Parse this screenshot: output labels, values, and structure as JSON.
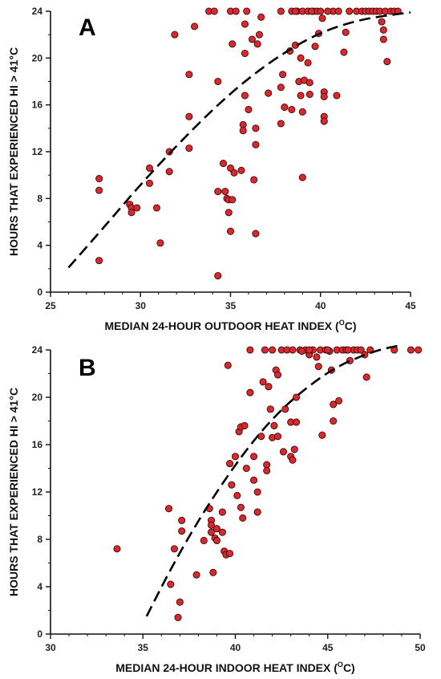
{
  "chart_data": [
    {
      "type": "scatter",
      "panel_label": "A",
      "xlabel": "MEDIAN 24-HOUR OUTDOOR HEAT INDEX (",
      "xlabel_unit_sup": "O",
      "xlabel_unit": "C)",
      "ylabel": "HOURS THAT EXPERIENCED HI > 41°C",
      "xlim": [
        25,
        45
      ],
      "ylim": [
        0,
        24
      ],
      "xticks": [
        25,
        30,
        35,
        40,
        45
      ],
      "yticks": [
        0,
        4,
        8,
        12,
        16,
        20,
        24
      ],
      "grid": false,
      "point_color": "#d9282e",
      "fit_curve": {
        "style": "dashed",
        "color": "#000000",
        "points": [
          [
            26,
            2.1
          ],
          [
            28,
            5.6
          ],
          [
            30,
            9.2
          ],
          [
            32,
            12.5
          ],
          [
            34,
            15.6
          ],
          [
            36,
            18.3
          ],
          [
            38,
            20.5
          ],
          [
            40,
            22.2
          ],
          [
            42,
            23.2
          ],
          [
            43.5,
            23.6
          ],
          [
            45,
            23.9
          ]
        ]
      },
      "points": [
        [
          27.7,
          9.7
        ],
        [
          27.7,
          8.7
        ],
        [
          27.7,
          2.7
        ],
        [
          29.4,
          7.5
        ],
        [
          29.5,
          7.2
        ],
        [
          29.5,
          6.8
        ],
        [
          29.8,
          7.2
        ],
        [
          30.5,
          10.6
        ],
        [
          30.5,
          9.3
        ],
        [
          30.9,
          7.2
        ],
        [
          31.1,
          4.2
        ],
        [
          31.6,
          12.0
        ],
        [
          31.6,
          10.3
        ],
        [
          31.9,
          22.0
        ],
        [
          32.7,
          18.6
        ],
        [
          32.7,
          15.0
        ],
        [
          32.7,
          12.3
        ],
        [
          33.0,
          22.7
        ],
        [
          33.8,
          24.0
        ],
        [
          34.1,
          24.0
        ],
        [
          34.3,
          18.0
        ],
        [
          34.3,
          8.6
        ],
        [
          34.3,
          1.4
        ],
        [
          34.6,
          11.0
        ],
        [
          34.7,
          8.6
        ],
        [
          34.8,
          8.0
        ],
        [
          34.9,
          7.9
        ],
        [
          34.9,
          6.8
        ],
        [
          35.0,
          5.2
        ],
        [
          35.0,
          10.6
        ],
        [
          35.1,
          7.9
        ],
        [
          35.2,
          10.2
        ],
        [
          35.0,
          24.0
        ],
        [
          35.1,
          21.2
        ],
        [
          35.3,
          24.0
        ],
        [
          35.6,
          10.4
        ],
        [
          35.7,
          14.3
        ],
        [
          35.7,
          13.8
        ],
        [
          35.8,
          16.8
        ],
        [
          35.8,
          20.4
        ],
        [
          35.8,
          22.9
        ],
        [
          35.9,
          24.0
        ],
        [
          36.0,
          15.6
        ],
        [
          36.2,
          21.6
        ],
        [
          36.3,
          9.6
        ],
        [
          36.4,
          5.0
        ],
        [
          36.4,
          14.0
        ],
        [
          36.4,
          12.6
        ],
        [
          36.5,
          21.2
        ],
        [
          36.6,
          22.0
        ],
        [
          36.7,
          23.5
        ],
        [
          37.1,
          17.0
        ],
        [
          37.8,
          24.0
        ],
        [
          37.8,
          17.5
        ],
        [
          37.8,
          14.4
        ],
        [
          37.9,
          18.6
        ],
        [
          38.0,
          15.8
        ],
        [
          38.3,
          20.6
        ],
        [
          38.4,
          24.0
        ],
        [
          38.4,
          15.6
        ],
        [
          38.6,
          21.1
        ],
        [
          38.7,
          24.0
        ],
        [
          38.8,
          18.0
        ],
        [
          38.9,
          20.0
        ],
        [
          38.9,
          16.8
        ],
        [
          39.0,
          24.0
        ],
        [
          39.0,
          15.4
        ],
        [
          39.0,
          9.8
        ],
        [
          39.1,
          18.1
        ],
        [
          39.3,
          19.6
        ],
        [
          39.3,
          24.0
        ],
        [
          39.4,
          17.9
        ],
        [
          39.4,
          16.9
        ],
        [
          39.6,
          24.0
        ],
        [
          39.7,
          21.0
        ],
        [
          39.8,
          24.0
        ],
        [
          39.9,
          22.1
        ],
        [
          40.0,
          24.0
        ],
        [
          40.1,
          23.4
        ],
        [
          40.2,
          17.1
        ],
        [
          40.2,
          16.7
        ],
        [
          40.2,
          15.0
        ],
        [
          40.2,
          14.6
        ],
        [
          40.7,
          24.0
        ],
        [
          40.9,
          16.8
        ],
        [
          41.0,
          24.0
        ],
        [
          41.3,
          20.5
        ],
        [
          41.4,
          22.2
        ],
        [
          41.6,
          24.0
        ],
        [
          42.0,
          24.0
        ],
        [
          42.3,
          24.0
        ],
        [
          42.5,
          24.0
        ],
        [
          42.7,
          24.0
        ],
        [
          42.9,
          24.0
        ],
        [
          43.1,
          24.0
        ],
        [
          43.3,
          24.0
        ],
        [
          43.4,
          23.1
        ],
        [
          43.5,
          21.6
        ],
        [
          43.5,
          22.4
        ],
        [
          43.6,
          24.0
        ],
        [
          43.7,
          19.7
        ],
        [
          43.9,
          24.0
        ],
        [
          44.1,
          24.0
        ],
        [
          44.3,
          24.0
        ],
        [
          38.6,
          24.0
        ],
        [
          39.5,
          24.0
        ],
        [
          40.4,
          24.0
        ]
      ]
    },
    {
      "type": "scatter",
      "panel_label": "B",
      "xlabel": "MEDIAN 24-HOUR INDOOR HEAT INDEX (",
      "xlabel_unit_sup": "O",
      "xlabel_unit": "C)",
      "ylabel": "HOURS THAT EXPERIENCED HI > 41°C",
      "xlim": [
        30,
        50
      ],
      "ylim": [
        0,
        24
      ],
      "xticks": [
        30,
        35,
        40,
        45,
        50
      ],
      "yticks": [
        0,
        4,
        8,
        12,
        16,
        20,
        24
      ],
      "grid": false,
      "point_color": "#d9282e",
      "fit_curve": {
        "style": "dashed",
        "color": "#000000",
        "points": [
          [
            35.2,
            1.5
          ],
          [
            36.5,
            5.5
          ],
          [
            38.0,
            9.6
          ],
          [
            39.5,
            13.2
          ],
          [
            41.0,
            16.4
          ],
          [
            42.5,
            19.0
          ],
          [
            44.0,
            21.0
          ],
          [
            45.5,
            22.6
          ],
          [
            47.0,
            23.6
          ],
          [
            48.0,
            24.1
          ],
          [
            49.0,
            24.4
          ]
        ]
      },
      "points": [
        [
          33.6,
          7.2
        ],
        [
          36.4,
          10.6
        ],
        [
          36.5,
          4.2
        ],
        [
          36.7,
          7.2
        ],
        [
          36.9,
          1.4
        ],
        [
          37.0,
          2.7
        ],
        [
          37.1,
          9.6
        ],
        [
          37.1,
          8.7
        ],
        [
          37.9,
          5.0
        ],
        [
          38.3,
          7.9
        ],
        [
          38.6,
          10.6
        ],
        [
          38.7,
          9.6
        ],
        [
          38.7,
          9.2
        ],
        [
          38.7,
          8.6
        ],
        [
          38.8,
          5.2
        ],
        [
          38.9,
          8.1
        ],
        [
          39.0,
          7.9
        ],
        [
          39.0,
          8.9
        ],
        [
          39.3,
          10.3
        ],
        [
          39.3,
          8.6
        ],
        [
          39.4,
          7.0
        ],
        [
          39.5,
          6.7
        ],
        [
          39.6,
          22.7
        ],
        [
          39.7,
          6.8
        ],
        [
          39.7,
          14.4
        ],
        [
          39.8,
          12.6
        ],
        [
          40.0,
          15.0
        ],
        [
          40.1,
          11.7
        ],
        [
          40.2,
          17.1
        ],
        [
          40.3,
          10.7
        ],
        [
          40.3,
          17.5
        ],
        [
          40.4,
          9.8
        ],
        [
          40.5,
          17.6
        ],
        [
          40.6,
          14.0
        ],
        [
          40.8,
          20.4
        ],
        [
          40.8,
          24.0
        ],
        [
          41.0,
          13.0
        ],
        [
          41.0,
          15.0
        ],
        [
          41.2,
          12.0
        ],
        [
          41.2,
          10.3
        ],
        [
          41.4,
          16.7
        ],
        [
          41.5,
          21.3
        ],
        [
          41.6,
          24.0
        ],
        [
          41.7,
          14.3
        ],
        [
          41.7,
          13.8
        ],
        [
          41.8,
          20.9
        ],
        [
          41.9,
          19.0
        ],
        [
          42.0,
          16.6
        ],
        [
          42.0,
          24.0
        ],
        [
          42.1,
          17.6
        ],
        [
          42.2,
          22.3
        ],
        [
          42.3,
          16.7
        ],
        [
          42.3,
          21.9
        ],
        [
          42.5,
          24.0
        ],
        [
          42.6,
          15.4
        ],
        [
          42.7,
          19.0
        ],
        [
          42.8,
          24.0
        ],
        [
          43.0,
          17.9
        ],
        [
          43.0,
          15.0
        ],
        [
          43.1,
          14.7
        ],
        [
          43.1,
          24.0
        ],
        [
          43.2,
          15.6
        ],
        [
          43.3,
          20.0
        ],
        [
          43.3,
          17.9
        ],
        [
          43.5,
          24.0
        ],
        [
          43.8,
          24.0
        ],
        [
          44.0,
          23.6
        ],
        [
          44.2,
          24.0
        ],
        [
          44.4,
          23.4
        ],
        [
          44.5,
          22.6
        ],
        [
          44.6,
          24.0
        ],
        [
          44.7,
          16.8
        ],
        [
          44.9,
          24.0
        ],
        [
          45.1,
          23.9
        ],
        [
          45.2,
          22.3
        ],
        [
          45.3,
          19.4
        ],
        [
          45.3,
          18.0
        ],
        [
          45.5,
          24.0
        ],
        [
          45.6,
          19.7
        ],
        [
          45.8,
          24.0
        ],
        [
          46.0,
          24.0
        ],
        [
          46.2,
          23.1
        ],
        [
          46.4,
          24.0
        ],
        [
          46.6,
          24.0
        ],
        [
          46.8,
          24.0
        ],
        [
          47.0,
          23.6
        ],
        [
          47.1,
          21.7
        ],
        [
          47.3,
          24.0
        ],
        [
          48.6,
          24.0
        ],
        [
          49.5,
          24.0
        ],
        [
          49.9,
          24.0
        ],
        [
          45.0,
          24.0
        ],
        [
          44.0,
          24.0
        ],
        [
          43.6,
          23.9
        ],
        [
          46.1,
          24.0
        ]
      ]
    }
  ]
}
